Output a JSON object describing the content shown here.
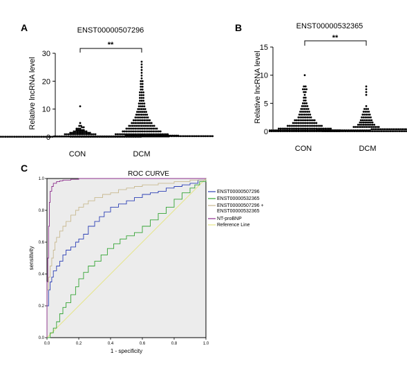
{
  "chart_data": [
    {
      "panel": "A",
      "type": "scatter",
      "title": "ENST00000507296",
      "ylabel": "Relative lncRNA level",
      "categories": [
        "CON",
        "DCM"
      ],
      "ylim": [
        0,
        30
      ],
      "yticks": [
        0,
        10,
        20,
        30
      ],
      "significance": "**",
      "series": [
        {
          "category": "CON",
          "values": [
            0.1,
            0.1,
            0.1,
            0.1,
            0.1,
            0.1,
            0.1,
            0.1,
            0.1,
            0.1,
            0.1,
            0.1,
            0.1,
            0.1,
            0.1,
            0.1,
            0.1,
            0.1,
            0.1,
            0.1,
            0.1,
            0.1,
            0.1,
            0.1,
            0.1,
            0.1,
            0.1,
            0.1,
            0.1,
            0.1,
            0.1,
            0.1,
            0.1,
            0.1,
            0.1,
            0.1,
            0.1,
            0.1,
            0.1,
            0.1,
            0.2,
            0.2,
            0.2,
            0.2,
            0.2,
            0.2,
            0.2,
            0.2,
            0.2,
            0.2,
            0.2,
            0.2,
            0.2,
            0.2,
            0.2,
            0.2,
            0.2,
            0.2,
            0.2,
            0.2,
            0.2,
            0.2,
            0.2,
            0.2,
            0.2,
            0.2,
            0.2,
            0.2,
            0.2,
            0.2,
            0.2,
            0.2,
            0.2,
            0.2,
            0.2,
            0.2,
            0.2,
            0.2,
            0.2,
            0.2,
            0.5,
            0.5,
            0.5,
            0.5,
            0.5,
            0.5,
            0.5,
            0.5,
            0.5,
            0.5,
            0.5,
            0.5,
            0.5,
            0.5,
            0.5,
            0.5,
            0.5,
            0.5,
            0.5,
            0.5,
            0.5,
            0.5,
            0.5,
            0.5,
            0.5,
            0.5,
            0.5,
            0.5,
            0.5,
            0.5,
            1.0,
            1.0,
            1.0,
            1.0,
            1.0,
            1.0,
            1.0,
            1.0,
            1.0,
            1.0,
            1.0,
            1.0,
            1.0,
            1.0,
            1.0,
            1.0,
            1.0,
            1.0,
            1.5,
            1.5,
            1.5,
            1.5,
            1.5,
            1.5,
            1.5,
            1.5,
            1.5,
            1.5,
            1.5,
            1.5,
            2.0,
            2.0,
            2.0,
            2.0,
            2.0,
            2.0,
            2.0,
            2.0,
            2.5,
            2.5,
            2.5,
            2.5,
            2.5,
            3.0,
            3.0,
            3.0,
            3.5,
            3.5,
            4.0,
            4.0,
            5.0,
            11.0
          ]
        },
        {
          "category": "DCM",
          "values": [
            0.1,
            0.1,
            0.1,
            0.1,
            0.1,
            0.1,
            0.1,
            0.1,
            0.1,
            0.1,
            0.1,
            0.1,
            0.1,
            0.1,
            0.1,
            0.1,
            0.1,
            0.1,
            0.1,
            0.1,
            0.1,
            0.1,
            0.1,
            0.1,
            0.1,
            0.1,
            0.1,
            0.1,
            0.1,
            0.1,
            0.1,
            0.1,
            0.1,
            0.1,
            0.1,
            0.1,
            0.1,
            0.1,
            0.1,
            0.1,
            0.3,
            0.3,
            0.3,
            0.3,
            0.3,
            0.3,
            0.3,
            0.3,
            0.3,
            0.3,
            0.3,
            0.3,
            0.3,
            0.3,
            0.3,
            0.3,
            0.3,
            0.3,
            0.3,
            0.3,
            0.3,
            0.3,
            0.3,
            0.3,
            0.3,
            0.3,
            0.3,
            0.3,
            0.3,
            0.3,
            0.3,
            0.3,
            0.3,
            0.3,
            0.3,
            0.3,
            0.3,
            0.3,
            0.3,
            0.3,
            1.0,
            1.0,
            1.0,
            1.0,
            1.0,
            1.0,
            1.0,
            1.0,
            1.0,
            1.0,
            1.0,
            1.0,
            1.0,
            1.0,
            1.0,
            1.0,
            1.0,
            1.0,
            1.0,
            1.0,
            1.0,
            1.0,
            1.0,
            1.0,
            1.0,
            1.0,
            1.0,
            1.0,
            1.0,
            1.0,
            2.0,
            2.0,
            2.0,
            2.0,
            2.0,
            2.0,
            2.0,
            2.0,
            2.0,
            2.0,
            2.0,
            2.0,
            2.0,
            2.0,
            2.0,
            2.0,
            2.0,
            2.0,
            2.0,
            2.0,
            2.0,
            2.0,
            3.0,
            3.0,
            3.0,
            3.0,
            3.0,
            3.0,
            3.0,
            3.0,
            3.0,
            3.0,
            3.0,
            3.0,
            3.0,
            3.0,
            3.0,
            3.0,
            3.0,
            3.0,
            4.0,
            4.0,
            4.0,
            4.0,
            4.0,
            4.0,
            4.0,
            4.0,
            4.0,
            4.0,
            4.0,
            4.0,
            4.0,
            4.0,
            4.0,
            5.0,
            5.0,
            5.0,
            5.0,
            5.0,
            5.0,
            5.0,
            5.0,
            5.0,
            5.0,
            5.0,
            5.0,
            6.0,
            6.0,
            6.0,
            6.0,
            6.0,
            6.0,
            6.0,
            6.0,
            6.0,
            6.0,
            7.0,
            7.0,
            7.0,
            7.0,
            7.0,
            7.0,
            7.0,
            7.0,
            8.0,
            8.0,
            8.0,
            8.0,
            8.0,
            8.0,
            8.0,
            9.0,
            9.0,
            9.0,
            9.0,
            9.0,
            9.0,
            10.0,
            10.0,
            10.0,
            10.0,
            10.0,
            11.0,
            11.0,
            11.0,
            11.0,
            12.0,
            12.0,
            12.0,
            12.0,
            13.0,
            13.0,
            13.0,
            14.0,
            14.0,
            14.0,
            15.0,
            15.0,
            15.0,
            16.0,
            16.0,
            16.0,
            17.0,
            17.0,
            18.0,
            18.0,
            19.0,
            19.0,
            20.0,
            20.0,
            21.0,
            22.0,
            23.0,
            24.0,
            25.0,
            26.0,
            27.0
          ]
        }
      ]
    },
    {
      "panel": "B",
      "type": "scatter",
      "title": "ENST00000532365",
      "ylabel": "Relative lncRNA level",
      "categories": [
        "CON",
        "DCM"
      ],
      "ylim": [
        0,
        15
      ],
      "yticks": [
        0,
        5,
        10,
        15
      ],
      "significance": "**",
      "series": [
        {
          "category": "CON",
          "values": [
            0.05,
            0.05,
            0.05,
            0.05,
            0.05,
            0.05,
            0.05,
            0.05,
            0.05,
            0.05,
            0.05,
            0.05,
            0.05,
            0.05,
            0.05,
            0.05,
            0.05,
            0.05,
            0.05,
            0.05,
            0.05,
            0.05,
            0.05,
            0.05,
            0.05,
            0.05,
            0.05,
            0.05,
            0.05,
            0.05,
            0.05,
            0.05,
            0.05,
            0.05,
            0.05,
            0.05,
            0.05,
            0.05,
            0.05,
            0.05,
            0.2,
            0.2,
            0.2,
            0.2,
            0.2,
            0.2,
            0.2,
            0.2,
            0.2,
            0.2,
            0.2,
            0.2,
            0.2,
            0.2,
            0.2,
            0.2,
            0.2,
            0.2,
            0.2,
            0.2,
            0.2,
            0.2,
            0.2,
            0.2,
            0.2,
            0.2,
            0.2,
            0.2,
            0.2,
            0.2,
            0.2,
            0.2,
            0.2,
            0.2,
            0.2,
            0.2,
            0.2,
            0.2,
            0.2,
            0.2,
            0.5,
            0.5,
            0.5,
            0.5,
            0.5,
            0.5,
            0.5,
            0.5,
            0.5,
            0.5,
            0.5,
            0.5,
            0.5,
            0.5,
            0.5,
            0.5,
            0.5,
            0.5,
            0.5,
            0.5,
            0.5,
            0.5,
            0.5,
            0.5,
            0.5,
            0.5,
            0.5,
            0.5,
            0.5,
            0.5,
            1.0,
            1.0,
            1.0,
            1.0,
            1.0,
            1.0,
            1.0,
            1.0,
            1.0,
            1.0,
            1.0,
            1.0,
            1.0,
            1.0,
            1.0,
            1.0,
            1.0,
            1.0,
            1.0,
            1.0,
            1.5,
            1.5,
            1.5,
            1.5,
            1.5,
            1.5,
            1.5,
            1.5,
            1.5,
            1.5,
            1.5,
            1.5,
            1.5,
            1.5,
            2.0,
            2.0,
            2.0,
            2.0,
            2.0,
            2.0,
            2.0,
            2.0,
            2.0,
            2.0,
            2.0,
            2.0,
            2.5,
            2.5,
            2.5,
            2.5,
            2.5,
            2.5,
            2.5,
            2.5,
            3.0,
            3.0,
            3.0,
            3.0,
            3.0,
            3.0,
            3.0,
            3.5,
            3.5,
            3.5,
            3.5,
            3.5,
            3.5,
            4.0,
            4.0,
            4.0,
            4.0,
            4.0,
            4.5,
            4.5,
            4.5,
            4.5,
            5.0,
            5.0,
            5.0,
            5.5,
            5.5,
            6.0,
            6.0,
            6.5,
            7.0,
            7.0,
            7.5,
            7.5,
            7.5,
            8.0,
            8.0,
            10.0
          ]
        },
        {
          "category": "DCM",
          "values": [
            0.05,
            0.05,
            0.05,
            0.05,
            0.05,
            0.05,
            0.05,
            0.05,
            0.05,
            0.05,
            0.05,
            0.05,
            0.05,
            0.05,
            0.05,
            0.05,
            0.05,
            0.05,
            0.05,
            0.05,
            0.05,
            0.05,
            0.05,
            0.05,
            0.05,
            0.05,
            0.05,
            0.05,
            0.05,
            0.05,
            0.05,
            0.05,
            0.05,
            0.05,
            0.05,
            0.05,
            0.05,
            0.05,
            0.05,
            0.05,
            0.05,
            0.05,
            0.05,
            0.05,
            0.05,
            0.05,
            0.05,
            0.05,
            0.05,
            0.05,
            0.2,
            0.2,
            0.2,
            0.2,
            0.2,
            0.2,
            0.2,
            0.2,
            0.2,
            0.2,
            0.2,
            0.2,
            0.2,
            0.2,
            0.2,
            0.2,
            0.2,
            0.2,
            0.2,
            0.2,
            0.2,
            0.2,
            0.2,
            0.2,
            0.2,
            0.2,
            0.2,
            0.2,
            0.2,
            0.2,
            0.4,
            0.4,
            0.4,
            0.4,
            0.4,
            0.4,
            0.4,
            0.4,
            0.4,
            0.4,
            0.4,
            0.4,
            0.4,
            0.4,
            0.4,
            0.4,
            0.4,
            0.4,
            0.4,
            0.4,
            0.4,
            0.4,
            0.4,
            0.4,
            0.4,
            0.8,
            0.8,
            0.8,
            0.8,
            0.8,
            0.8,
            0.8,
            0.8,
            0.8,
            0.8,
            0.8,
            0.8,
            0.8,
            0.8,
            0.8,
            1.2,
            1.2,
            1.2,
            1.2,
            1.2,
            1.2,
            1.2,
            1.2,
            1.2,
            1.2,
            1.6,
            1.6,
            1.6,
            1.6,
            1.6,
            1.6,
            1.6,
            1.6,
            2.0,
            2.0,
            2.0,
            2.0,
            2.0,
            2.0,
            2.0,
            2.5,
            2.5,
            2.5,
            2.5,
            2.5,
            2.5,
            3.0,
            3.0,
            3.0,
            3.0,
            3.0,
            3.5,
            3.5,
            3.5,
            3.5,
            4.0,
            4.0,
            4.0,
            4.5,
            6.5,
            7.0,
            7.5,
            8.0
          ]
        }
      ]
    },
    {
      "panel": "C",
      "type": "line",
      "title": "ROC CURVE",
      "xlabel": "1 - specificity",
      "ylabel": "sensitivity",
      "xlim": [
        0,
        1
      ],
      "ylim": [
        0,
        1
      ],
      "xticks": [
        0.0,
        0.2,
        0.4,
        0.6,
        0.8,
        1.0
      ],
      "yticks": [
        0.0,
        0.2,
        0.4,
        0.6,
        0.8,
        1.0
      ],
      "xtick_labels": [
        "0.0",
        "0.2",
        "0.4",
        "0.6",
        "0.8",
        "1.0"
      ],
      "ytick_labels": [
        "0.0",
        "0.2",
        "0.4",
        "0.6",
        "0.8",
        "1.0"
      ],
      "legend_position": "right",
      "series": [
        {
          "name": "ENST00000507296",
          "color": "#2b3fb5",
          "x": [
            0,
            0,
            0.01,
            0.01,
            0.02,
            0.03,
            0.04,
            0.06,
            0.08,
            0.1,
            0.12,
            0.15,
            0.18,
            0.2,
            0.23,
            0.26,
            0.3,
            0.33,
            0.36,
            0.4,
            0.45,
            0.5,
            0.55,
            0.6,
            0.65,
            0.7,
            0.75,
            0.8,
            0.85,
            0.9,
            0.95,
            1.0
          ],
          "y": [
            0,
            0.2,
            0.25,
            0.3,
            0.35,
            0.38,
            0.42,
            0.45,
            0.48,
            0.52,
            0.55,
            0.57,
            0.6,
            0.62,
            0.65,
            0.7,
            0.73,
            0.76,
            0.79,
            0.82,
            0.84,
            0.86,
            0.88,
            0.9,
            0.91,
            0.92,
            0.94,
            0.95,
            0.96,
            0.97,
            0.99,
            1.0
          ]
        },
        {
          "name": "ENST00000532365",
          "color": "#33a433",
          "x": [
            0,
            0.02,
            0.04,
            0.06,
            0.08,
            0.1,
            0.12,
            0.15,
            0.18,
            0.2,
            0.23,
            0.26,
            0.3,
            0.34,
            0.38,
            0.42,
            0.46,
            0.5,
            0.55,
            0.6,
            0.65,
            0.7,
            0.75,
            0.8,
            0.85,
            0.9,
            0.93,
            0.96,
            1.0
          ],
          "y": [
            0,
            0.03,
            0.06,
            0.1,
            0.15,
            0.19,
            0.22,
            0.27,
            0.32,
            0.37,
            0.41,
            0.45,
            0.48,
            0.52,
            0.56,
            0.59,
            0.62,
            0.64,
            0.66,
            0.7,
            0.74,
            0.78,
            0.82,
            0.87,
            0.91,
            0.94,
            0.96,
            0.98,
            1.0
          ]
        },
        {
          "name": "ENST00000507296 + ENST00000532365",
          "color": "#c8b98f",
          "x": [
            0,
            0,
            0.01,
            0.02,
            0.03,
            0.04,
            0.05,
            0.06,
            0.08,
            0.1,
            0.12,
            0.15,
            0.18,
            0.2,
            0.23,
            0.26,
            0.3,
            0.35,
            0.4,
            0.45,
            0.5,
            0.55,
            0.6,
            0.7,
            0.8,
            0.9,
            1.0
          ],
          "y": [
            0,
            0.3,
            0.38,
            0.45,
            0.5,
            0.55,
            0.6,
            0.63,
            0.67,
            0.7,
            0.73,
            0.77,
            0.8,
            0.82,
            0.84,
            0.86,
            0.88,
            0.9,
            0.91,
            0.93,
            0.94,
            0.95,
            0.96,
            0.97,
            0.98,
            0.99,
            1.0
          ]
        },
        {
          "name": "NT-proBNP",
          "color": "#8b2c8b",
          "x": [
            0,
            0,
            0.005,
            0.01,
            0.015,
            0.02,
            0.03,
            0.04,
            0.06,
            0.08,
            0.1,
            0.15,
            0.2,
            0.3,
            0.5,
            0.7,
            0.8,
            0.9,
            1.0
          ],
          "y": [
            0,
            0.35,
            0.5,
            0.7,
            0.85,
            0.92,
            0.95,
            0.97,
            0.98,
            0.985,
            0.99,
            0.995,
            1.0,
            1.0,
            1.0,
            1.0,
            1.0,
            1.0,
            1.0
          ]
        },
        {
          "name": "Reference Line",
          "color": "#e6e68a",
          "x": [
            0,
            1
          ],
          "y": [
            0,
            1
          ]
        }
      ]
    }
  ],
  "labels": {
    "panel_a": "A",
    "panel_b": "B",
    "panel_c": "C"
  }
}
